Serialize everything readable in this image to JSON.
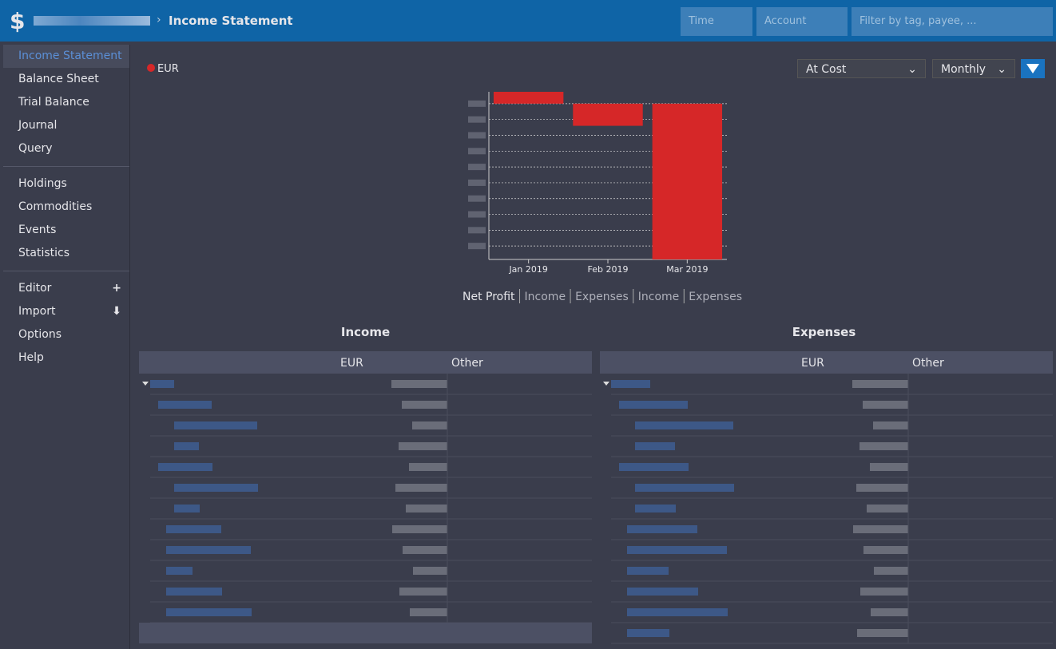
{
  "header": {
    "title": "Income Statement",
    "time_placeholder": "Time",
    "account_placeholder": "Account",
    "filter_placeholder": "Filter by tag, payee, ..."
  },
  "sidebar": {
    "groups": [
      [
        "Income Statement",
        "Balance Sheet",
        "Trial Balance",
        "Journal",
        "Query"
      ],
      [
        "Holdings",
        "Commodities",
        "Events",
        "Statistics"
      ],
      [
        "Editor",
        "Import",
        "Options",
        "Help"
      ]
    ]
  },
  "toolbar": {
    "conversion": "At Cost",
    "interval": "Monthly"
  },
  "chart_data": {
    "type": "bar",
    "series": [
      {
        "name": "EUR",
        "color": "#d62728",
        "values": [
          750,
          -1400,
          -9850
        ]
      }
    ],
    "categories": [
      "Jan 2019",
      "Feb 2019",
      "Mar 2019"
    ],
    "ylim": [
      -9850,
      750
    ],
    "yticks": [
      0,
      -1000,
      -2000,
      -3000,
      -4000,
      -5000,
      -6000,
      -7000,
      -8000,
      -9000
    ],
    "grid": true
  },
  "chart_tabs": [
    "Net Profit",
    "Income",
    "Expenses",
    "Income",
    "Expenses"
  ],
  "tables": [
    {
      "title": "Income",
      "columns": [
        "EUR",
        "Other"
      ]
    },
    {
      "title": "Expenses",
      "columns": [
        "EUR",
        "Other"
      ]
    }
  ]
}
